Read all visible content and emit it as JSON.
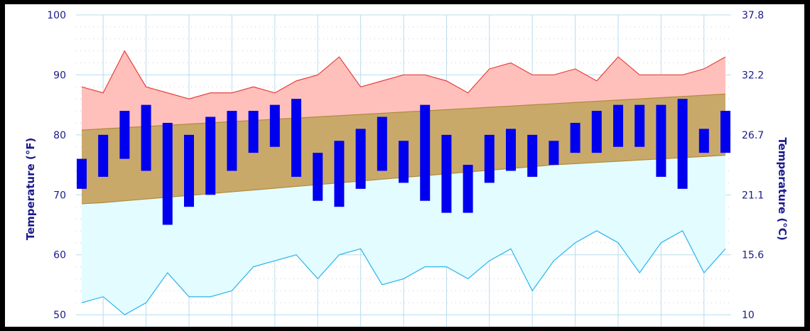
{
  "chart_data": {
    "type": "bar",
    "ylabel_left": "Temperature (°F)",
    "ylabel_right": "Temperature (°C)",
    "ylim": [
      48,
      100
    ],
    "y_ticks_left": [
      "100",
      "90",
      "80",
      "70",
      "60",
      "50"
    ],
    "y_ticks_right": [
      "37.8",
      "32.2",
      "26.7",
      "21.1",
      "15.6",
      "10"
    ],
    "grid": true,
    "x": [
      1,
      2,
      3,
      4,
      5,
      6,
      7,
      8,
      9,
      10,
      11,
      12,
      13,
      14,
      15,
      16,
      17,
      18,
      19,
      20,
      21,
      22,
      23,
      24,
      25,
      26,
      27,
      28,
      29,
      30,
      31
    ],
    "record_high": [
      88,
      87,
      94,
      88,
      87,
      86,
      87,
      87,
      88,
      87,
      89,
      90,
      93,
      88,
      89,
      90,
      90,
      89,
      87,
      91,
      92,
      90,
      90,
      91,
      89,
      93,
      90,
      90,
      90,
      91,
      93
    ],
    "normal_high": [
      80.8,
      81.0,
      81.2,
      81.4,
      81.6,
      81.8,
      82.0,
      82.2,
      82.4,
      82.6,
      82.8,
      83.0,
      83.2,
      83.4,
      83.6,
      83.8,
      84.0,
      84.2,
      84.4,
      84.6,
      84.8,
      85.0,
      85.2,
      85.4,
      85.6,
      85.8,
      86.0,
      86.2,
      86.4,
      86.6,
      86.8
    ],
    "normal_low": [
      68.5,
      68.7,
      69.0,
      69.3,
      69.6,
      69.9,
      70.2,
      70.5,
      70.8,
      71.1,
      71.4,
      71.7,
      72.0,
      72.3,
      72.6,
      72.9,
      73.2,
      73.5,
      73.8,
      74.1,
      74.4,
      74.7,
      75.0,
      75.2,
      75.4,
      75.6,
      75.8,
      76.0,
      76.2,
      76.4,
      76.6
    ],
    "record_low": [
      52,
      53,
      50,
      52,
      57,
      53,
      53,
      54,
      58,
      59,
      60,
      56,
      60,
      61,
      55,
      56,
      58,
      58,
      56,
      59,
      61,
      54,
      59,
      62,
      64,
      62,
      57,
      62,
      64,
      57,
      61
    ],
    "actual": [
      {
        "low": 71,
        "high": 76
      },
      {
        "low": 73,
        "high": 80
      },
      {
        "low": 76,
        "high": 84
      },
      {
        "low": 74,
        "high": 85
      },
      {
        "low": 65,
        "high": 82
      },
      {
        "low": 68,
        "high": 80
      },
      {
        "low": 70,
        "high": 83
      },
      {
        "low": 74,
        "high": 84
      },
      {
        "low": 77,
        "high": 84
      },
      {
        "low": 78,
        "high": 85
      },
      {
        "low": 73,
        "high": 86
      },
      {
        "low": 69,
        "high": 77
      },
      {
        "low": 68,
        "high": 79
      },
      {
        "low": 71,
        "high": 81
      },
      {
        "low": 74,
        "high": 83
      },
      {
        "low": 72,
        "high": 79
      },
      {
        "low": 69,
        "high": 85
      },
      {
        "low": 67,
        "high": 80
      },
      {
        "low": 67,
        "high": 75
      },
      {
        "low": 72,
        "high": 80
      },
      {
        "low": 74,
        "high": 81
      },
      {
        "low": 73,
        "high": 80
      },
      {
        "low": 75,
        "high": 79
      },
      {
        "low": 77,
        "high": 82
      },
      {
        "low": 77,
        "high": 84
      },
      {
        "low": 78,
        "high": 85
      },
      {
        "low": 78,
        "high": 85
      },
      {
        "low": 73,
        "high": 85
      },
      {
        "low": 71,
        "high": 86
      },
      {
        "low": 77,
        "high": 81
      },
      {
        "low": 77,
        "high": 84
      }
    ],
    "colors": {
      "record_high_line": "#e8413a",
      "record_high_fill": "#ffc0bc",
      "normal_band_fill": "#c9a96a",
      "normal_band_edge": "#b08a3c",
      "record_low_fill": "#e2fcff",
      "record_low_line": "#38b8ee",
      "actual_bar": "#0000ee",
      "grid": "#b9dcee",
      "axis_text": "#1a1a8c"
    }
  }
}
